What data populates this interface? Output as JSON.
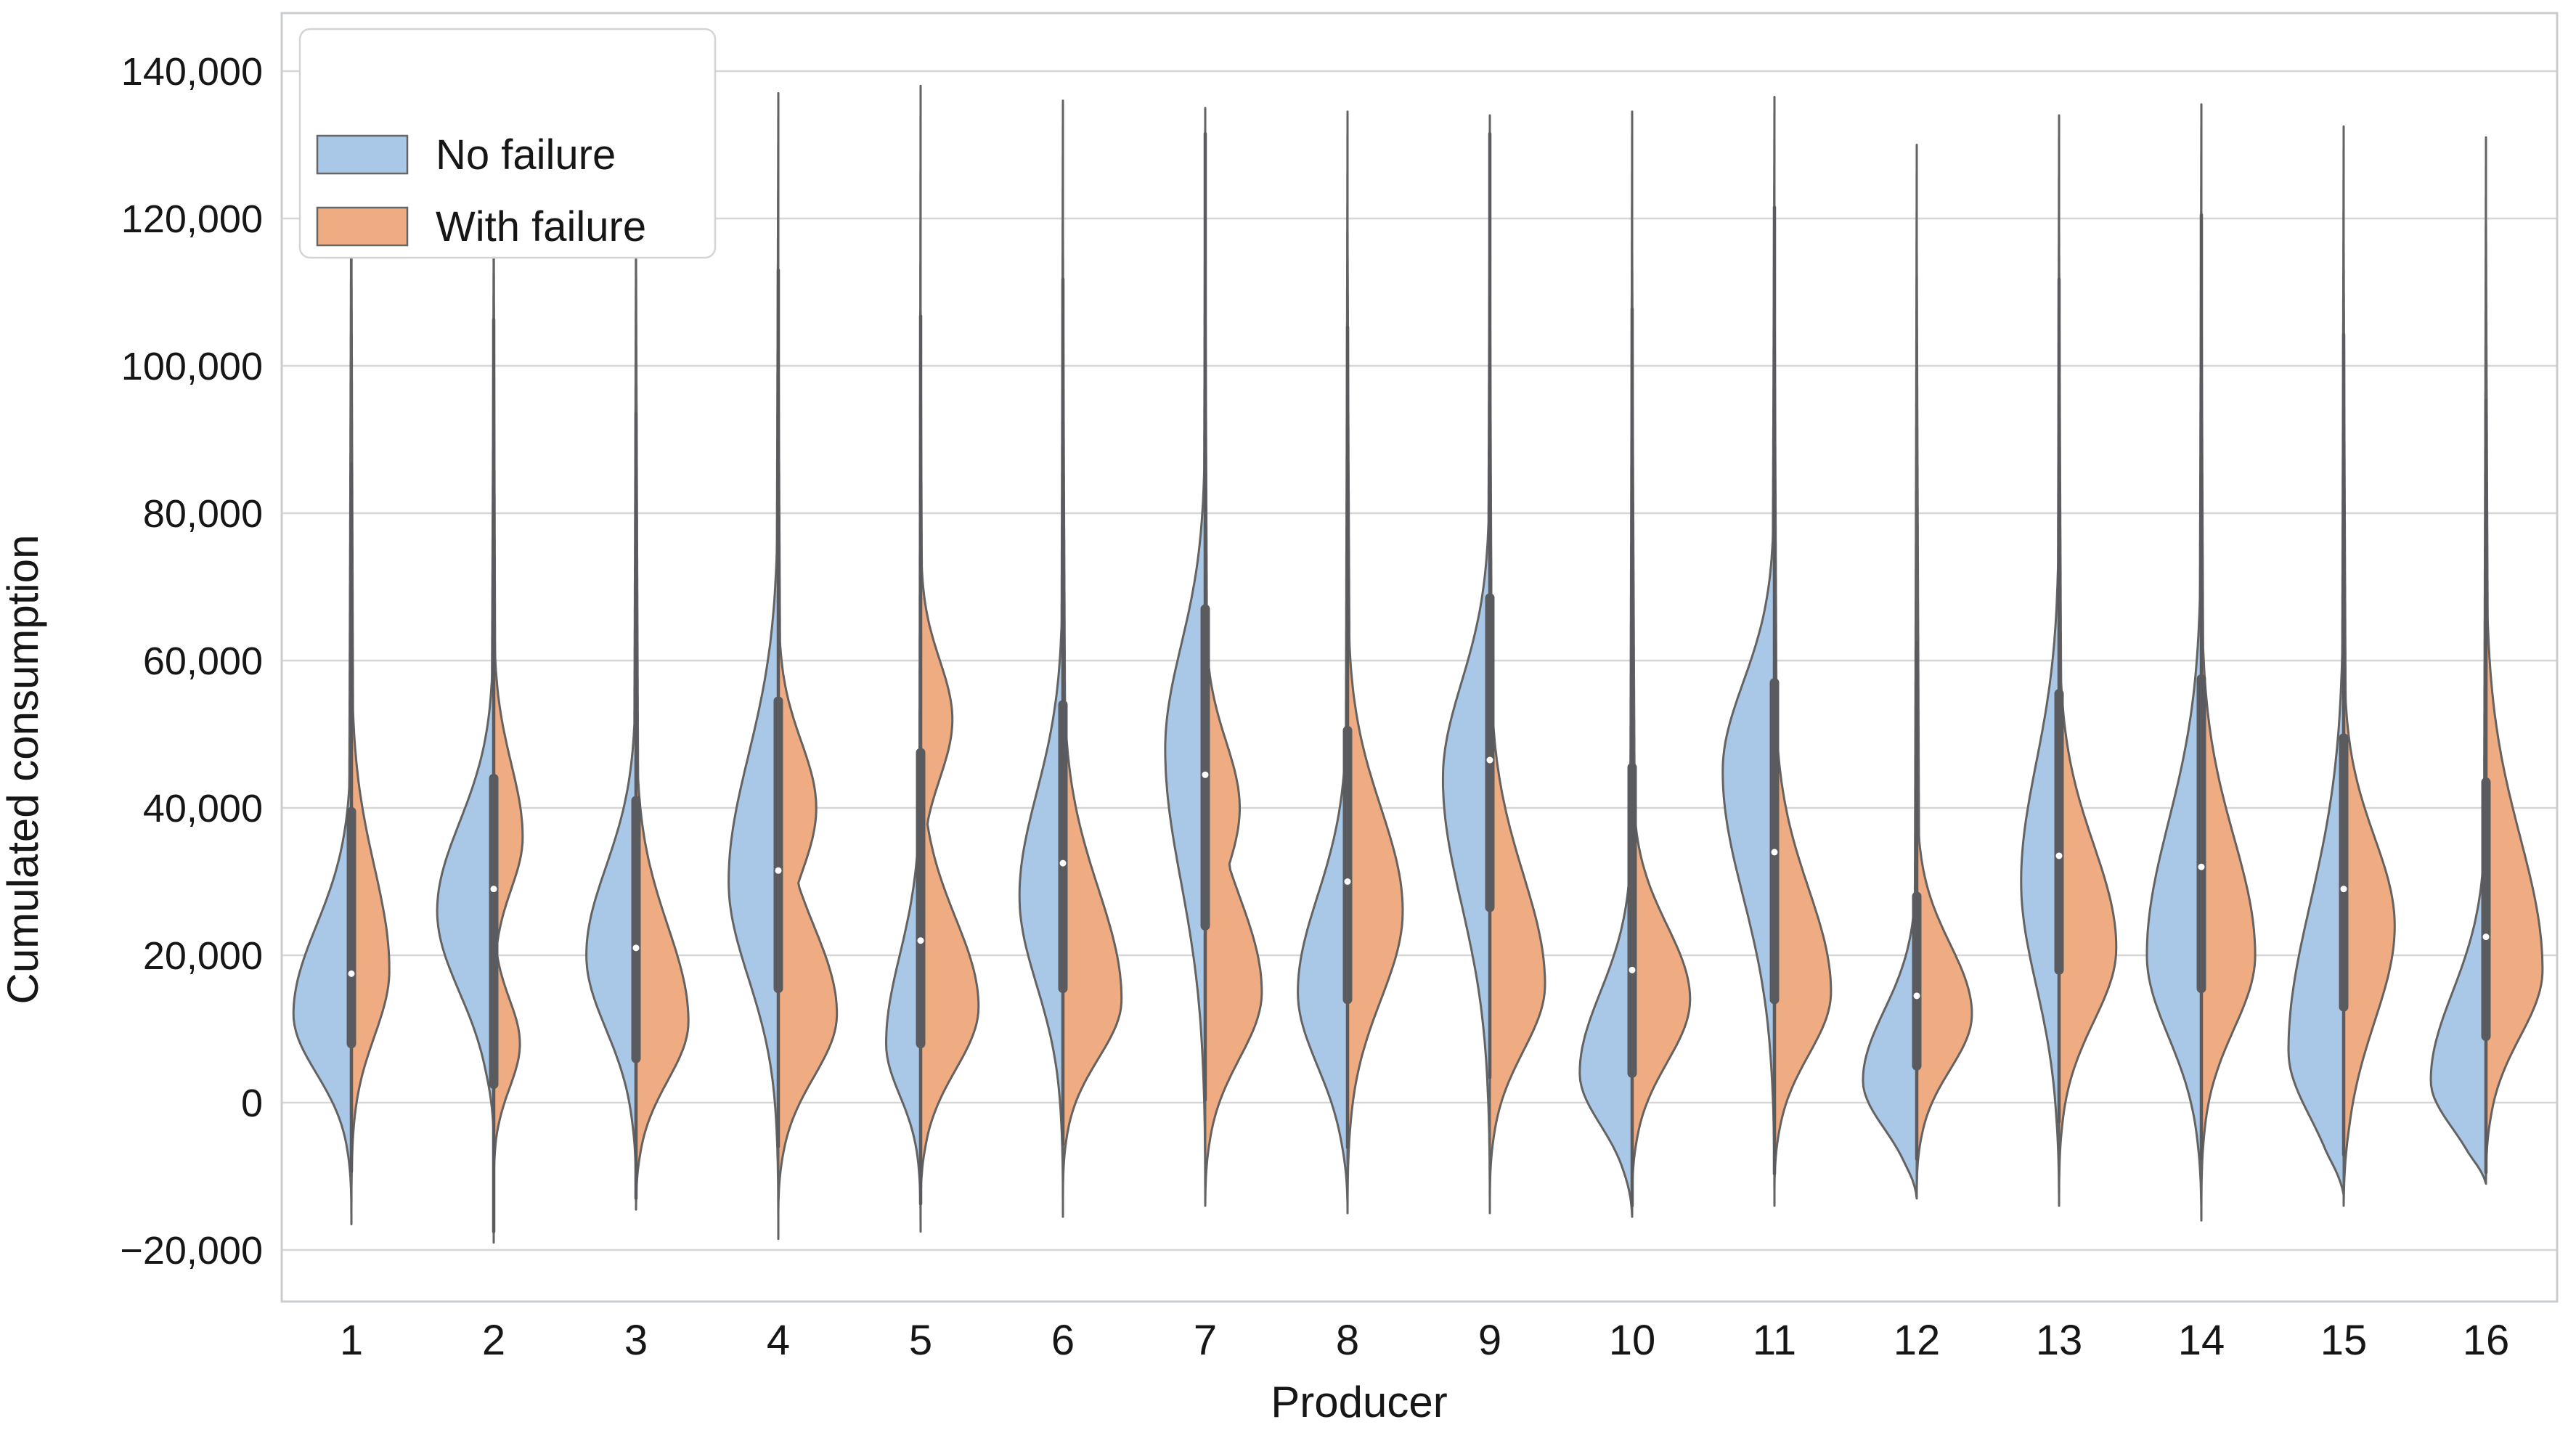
{
  "chart_data": {
    "type": "violin",
    "variant": "split-violin",
    "title": "",
    "xlabel": "Producer",
    "ylabel": "Cumulated consumption",
    "x_categories": [
      "1",
      "2",
      "3",
      "4",
      "5",
      "6",
      "7",
      "8",
      "9",
      "10",
      "11",
      "12",
      "13",
      "14",
      "15",
      "16"
    ],
    "y_ticks": [
      {
        "v": 140000,
        "label": "140,000"
      },
      {
        "v": 120000,
        "label": "120,000"
      },
      {
        "v": 100000,
        "label": "100,000"
      },
      {
        "v": 80000,
        "label": "80,000"
      },
      {
        "v": 60000,
        "label": "60,000"
      },
      {
        "v": 40000,
        "label": "40,000"
      },
      {
        "v": 20000,
        "label": "20,000"
      },
      {
        "v": 0,
        "label": "0"
      },
      {
        "v": -20000,
        "label": "−20,000"
      }
    ],
    "ylim": [
      -27000,
      148000
    ],
    "grid": "horizontal",
    "legend": {
      "position": "upper-left",
      "items": [
        {
          "label": "No failure",
          "color": "#a9c7e7"
        },
        {
          "label": "With failure",
          "color": "#efab81"
        }
      ]
    },
    "colors": {
      "no_failure_fill": "#a9c7e7",
      "with_failure_fill": "#efab81",
      "outline": "#636363",
      "box": "#595b5e",
      "median_dot": "#ffffff",
      "gridline": "#d6d6d6",
      "spine": "#c9cdd0",
      "text": "#161616"
    },
    "producers": [
      {
        "label": "1",
        "box": {
          "q1": 8000,
          "median": 17500,
          "q3": 39500
        },
        "no_failure": {
          "vmin": -15500,
          "vmax": 137000,
          "mode": 12000,
          "w": 0.84,
          "sd": 8000,
          "su": 12000,
          "neck": 0.05,
          "bump": null
        },
        "with_failure": {
          "vmin": -16500,
          "vmax": 121000,
          "mode": 18000,
          "w": 0.55,
          "sd": 9000,
          "su": 14000,
          "neck": 0.07,
          "bump": null
        }
      },
      {
        "label": "2",
        "box": {
          "q1": 2500,
          "median": 29000,
          "q3": 44000
        },
        "no_failure": {
          "vmin": -5000,
          "vmax": 118000,
          "mode": 26000,
          "w": 0.82,
          "sd": 11000,
          "su": 12000,
          "neck": 0.05,
          "bump": null
        },
        "with_failure": {
          "vmin": -19000,
          "vmax": 123000,
          "mode": 36000,
          "w": 0.42,
          "sd": 7000,
          "su": 10000,
          "neck": 0.07,
          "bump": {
            "v": 8000,
            "w": 0.38,
            "s": 6000
          }
        }
      },
      {
        "label": "3",
        "box": {
          "q1": 6000,
          "median": 21000,
          "q3": 41000
        },
        "no_failure": {
          "vmin": -12000,
          "vmax": 121000,
          "mode": 20000,
          "w": 0.72,
          "sd": 10000,
          "su": 12000,
          "neck": 0.05,
          "bump": null
        },
        "with_failure": {
          "vmin": -14500,
          "vmax": 118000,
          "mode": 11000,
          "w": 0.76,
          "sd": 8000,
          "su": 13000,
          "neck": 0.06,
          "bump": null
        }
      },
      {
        "label": "4",
        "box": {
          "q1": 15500,
          "median": 31500,
          "q3": 54500
        },
        "no_failure": {
          "vmin": -18500,
          "vmax": 137000,
          "mode": 30000,
          "w": 0.72,
          "sd": 13000,
          "su": 17000,
          "neck": 0.055,
          "bump": null
        },
        "with_failure": {
          "vmin": -15000,
          "vmax": 112000,
          "mode": 12000,
          "w": 0.85,
          "sd": 8500,
          "su": 12000,
          "neck": 0.065,
          "bump": {
            "v": 40000,
            "w": 0.55,
            "s": 9000
          }
        }
      },
      {
        "label": "5",
        "box": {
          "q1": 8000,
          "median": 22000,
          "q3": 47500
        },
        "no_failure": {
          "vmin": -17500,
          "vmax": 138000,
          "mode": 8000,
          "w": 0.5,
          "sd": 7000,
          "su": 12000,
          "neck": 0.05,
          "bump": null
        },
        "with_failure": {
          "vmin": -14000,
          "vmax": 110000,
          "mode": 13000,
          "w": 0.84,
          "sd": 8500,
          "su": 12000,
          "neck": 0.06,
          "bump": {
            "v": 52000,
            "w": 0.46,
            "s": 8000
          }
        }
      },
      {
        "label": "6",
        "box": {
          "q1": 15500,
          "median": 32500,
          "q3": 54000
        },
        "no_failure": {
          "vmin": -15500,
          "vmax": 136000,
          "mode": 28000,
          "w": 0.63,
          "sd": 12000,
          "su": 14000,
          "neck": 0.05,
          "bump": null
        },
        "with_failure": {
          "vmin": -13000,
          "vmax": 120000,
          "mode": 14000,
          "w": 0.85,
          "sd": 8000,
          "su": 15000,
          "neck": 0.06,
          "bump": null
        }
      },
      {
        "label": "7",
        "box": {
          "q1": 24000,
          "median": 44500,
          "q3": 67000
        },
        "no_failure": {
          "vmin": -13500,
          "vmax": 135000,
          "mode": 48000,
          "w": 0.58,
          "sd": 18000,
          "su": 14000,
          "neck": 0.05,
          "bump": null
        },
        "with_failure": {
          "vmin": -14000,
          "vmax": 122000,
          "mode": 15000,
          "w": 0.82,
          "sd": 9000,
          "su": 13000,
          "neck": 0.06,
          "bump": {
            "v": 40000,
            "w": 0.5,
            "s": 9000
          }
        }
      },
      {
        "label": "8",
        "box": {
          "q1": 14000,
          "median": 30000,
          "q3": 50500
        },
        "no_failure": {
          "vmin": -14000,
          "vmax": 134500,
          "mode": 15000,
          "w": 0.72,
          "sd": 10000,
          "su": 13000,
          "neck": 0.05,
          "bump": null
        },
        "with_failure": {
          "vmin": -15000,
          "vmax": 120000,
          "mode": 26000,
          "w": 0.8,
          "sd": 12000,
          "su": 14000,
          "neck": 0.06,
          "bump": null
        }
      },
      {
        "label": "9",
        "box": {
          "q1": 26500,
          "median": 46500,
          "q3": 68500
        },
        "no_failure": {
          "vmin": -15000,
          "vmax": 134000,
          "mode": 44000,
          "w": 0.68,
          "sd": 17000,
          "su": 13000,
          "neck": 0.05,
          "bump": null
        },
        "with_failure": {
          "vmin": -13000,
          "vmax": 122000,
          "mode": 16000,
          "w": 0.8,
          "sd": 9000,
          "su": 15000,
          "neck": 0.06,
          "bump": null
        }
      },
      {
        "label": "10",
        "box": {
          "q1": 4000,
          "median": 18000,
          "q3": 45500
        },
        "no_failure": {
          "vmin": -15500,
          "vmax": 134500,
          "mode": 4000,
          "w": 0.76,
          "sd": 7000,
          "su": 11000,
          "neck": 0.05,
          "bump": null
        },
        "with_failure": {
          "vmin": -13000,
          "vmax": 118000,
          "mode": 14000,
          "w": 0.84,
          "sd": 8500,
          "su": 10000,
          "neck": 0.06,
          "bump": null
        }
      },
      {
        "label": "11",
        "box": {
          "q1": 14000,
          "median": 34000,
          "q3": 57000
        },
        "no_failure": {
          "vmin": -14000,
          "vmax": 136500,
          "mode": 45000,
          "w": 0.75,
          "sd": 17000,
          "su": 12000,
          "neck": 0.05,
          "bump": null
        },
        "with_failure": {
          "vmin": -12000,
          "vmax": 121000,
          "mode": 15000,
          "w": 0.82,
          "sd": 8500,
          "su": 14000,
          "neck": 0.06,
          "bump": null
        }
      },
      {
        "label": "12",
        "box": {
          "q1": 5000,
          "median": 14500,
          "q3": 28000
        },
        "no_failure": {
          "vmin": -13000,
          "vmax": 130000,
          "mode": 3000,
          "w": 0.78,
          "sd": 6500,
          "su": 9500,
          "neck": 0.045,
          "bump": null
        },
        "with_failure": {
          "vmin": -12000,
          "vmax": 118000,
          "mode": 12000,
          "w": 0.8,
          "sd": 7500,
          "su": 9500,
          "neck": 0.055,
          "bump": null
        }
      },
      {
        "label": "13",
        "box": {
          "q1": 18000,
          "median": 33500,
          "q3": 55500
        },
        "no_failure": {
          "vmin": -14000,
          "vmax": 134000,
          "mode": 30000,
          "w": 0.55,
          "sd": 14000,
          "su": 16000,
          "neck": 0.05,
          "bump": null
        },
        "with_failure": {
          "vmin": -13500,
          "vmax": 120000,
          "mode": 21000,
          "w": 0.83,
          "sd": 10000,
          "su": 14000,
          "neck": 0.06,
          "bump": null
        }
      },
      {
        "label": "14",
        "box": {
          "q1": 15500,
          "median": 32000,
          "q3": 57500
        },
        "no_failure": {
          "vmin": -16000,
          "vmax": 135500,
          "mode": 20000,
          "w": 0.79,
          "sd": 11000,
          "su": 18000,
          "neck": 0.05,
          "bump": null
        },
        "with_failure": {
          "vmin": -15000,
          "vmax": 121000,
          "mode": 20000,
          "w": 0.78,
          "sd": 10000,
          "su": 16000,
          "neck": 0.06,
          "bump": null
        }
      },
      {
        "label": "15",
        "box": {
          "q1": 13000,
          "median": 29000,
          "q3": 49500
        },
        "no_failure": {
          "vmin": -12500,
          "vmax": 132500,
          "mode": 7000,
          "w": 0.8,
          "sd": 9000,
          "su": 20000,
          "neck": 0.05,
          "bump": null
        },
        "with_failure": {
          "vmin": -14000,
          "vmax": 118000,
          "mode": 24000,
          "w": 0.74,
          "sd": 13000,
          "su": 12000,
          "neck": 0.06,
          "bump": null
        }
      },
      {
        "label": "16",
        "box": {
          "q1": 9000,
          "median": 22500,
          "q3": 43500
        },
        "no_failure": {
          "vmin": -11000,
          "vmax": 131000,
          "mode": 3000,
          "w": 0.8,
          "sd": 6500,
          "su": 12000,
          "neck": 0.05,
          "bump": null
        },
        "with_failure": {
          "vmin": -10500,
          "vmax": 122000,
          "mode": 18000,
          "w": 0.82,
          "sd": 9000,
          "su": 18000,
          "neck": 0.06,
          "bump": null
        }
      }
    ]
  }
}
